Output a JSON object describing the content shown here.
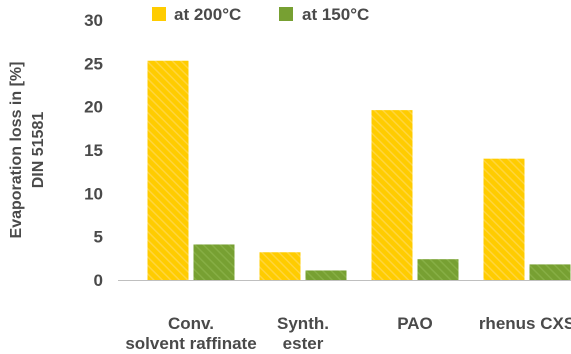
{
  "chart_data": {
    "type": "bar",
    "categories": [
      [
        "Conv.",
        "solvent raffinate"
      ],
      [
        "Synth.",
        "ester"
      ],
      [
        "PAO"
      ],
      [
        "rhenus CXS"
      ]
    ],
    "series": [
      {
        "name": "at 200°C",
        "values": [
          25.3,
          3.2,
          19.6,
          14.0
        ]
      },
      {
        "name": "at 150°C",
        "values": [
          4.1,
          1.1,
          2.4,
          1.8
        ]
      }
    ],
    "ylabel": [
      "Evaporation loss in [%]",
      "DIN 51581"
    ],
    "ylim": [
      0,
      30
    ],
    "yticks": [
      0,
      5,
      10,
      15,
      20,
      25,
      30
    ],
    "grid": false,
    "legend_placement": "top",
    "colors": {
      "at 200°C": "#FFCC00",
      "at 150°C": "#77A032",
      "axis": "#bfbfbf",
      "text": "#4a4a4a"
    }
  }
}
